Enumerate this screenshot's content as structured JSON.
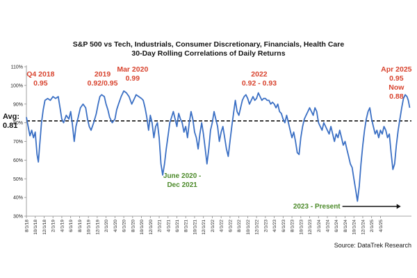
{
  "chart_data": {
    "type": "line",
    "title": "S&P 500 vs Tech, Industrials, Consumer Discretionary, Financials, Health Care",
    "subtitle": "30-Day Rolling Correlations of Daily Returns",
    "source": "Source: DataTrek Research",
    "ylim": [
      30,
      110
    ],
    "y_ticks": [
      30,
      40,
      50,
      60,
      70,
      80,
      90,
      100,
      110
    ],
    "y_tick_labels": [
      "30%",
      "40%",
      "50%",
      "60%",
      "70%",
      "80%",
      "90%",
      "100%",
      "110%"
    ],
    "x_tick_labels": [
      "8/1/18",
      "10/1/18",
      "12/1/18",
      "2/1/19",
      "4/1/19",
      "6/1/19",
      "8/1/19",
      "10/1/19",
      "12/1/19",
      "2/1/20",
      "4/1/20",
      "6/1/20",
      "8/1/20",
      "10/1/20",
      "12/1/20",
      "2/1/21",
      "4/1/21",
      "6/1/21",
      "8/1/21",
      "10/1/21",
      "12/1/21",
      "2/1/22",
      "4/1/22",
      "6/1/22",
      "8/1/22",
      "10/1/22",
      "12/1/22",
      "2/1/23",
      "4/1/23",
      "6/1/23",
      "8/1/23",
      "10/1/23",
      "12/1/23",
      "2/1/24",
      "4/1/24",
      "6/1/24",
      "8/1/24",
      "10/1/24",
      "12/1/24",
      "2/1/25",
      "4/1/25"
    ],
    "average": 0.81,
    "average_label": "Avg:",
    "average_value_label": "0.81",
    "series": [
      {
        "name": "30-day rolling correlation",
        "color": "#3a6fc4",
        "points": [
          [
            0,
            83
          ],
          [
            0.2,
            78
          ],
          [
            0.4,
            73
          ],
          [
            0.6,
            76
          ],
          [
            0.8,
            72
          ],
          [
            1,
            75
          ],
          [
            1.2,
            63
          ],
          [
            1.35,
            59
          ],
          [
            1.5,
            68
          ],
          [
            1.7,
            80
          ],
          [
            1.9,
            87
          ],
          [
            2.1,
            92
          ],
          [
            2.4,
            93
          ],
          [
            2.7,
            92
          ],
          [
            3,
            94
          ],
          [
            3.3,
            93
          ],
          [
            3.6,
            94
          ],
          [
            3.8,
            88
          ],
          [
            4,
            82
          ],
          [
            4.2,
            80
          ],
          [
            4.5,
            84
          ],
          [
            4.8,
            82
          ],
          [
            5,
            86
          ],
          [
            5.2,
            79
          ],
          [
            5.4,
            70
          ],
          [
            5.6,
            78
          ],
          [
            5.8,
            82
          ],
          [
            6.1,
            88
          ],
          [
            6.4,
            90
          ],
          [
            6.7,
            88
          ],
          [
            6.9,
            82
          ],
          [
            7.1,
            78
          ],
          [
            7.3,
            76
          ],
          [
            7.6,
            80
          ],
          [
            7.9,
            85
          ],
          [
            8.1,
            90
          ],
          [
            8.3,
            94
          ],
          [
            8.5,
            95
          ],
          [
            8.8,
            94
          ],
          [
            9,
            90
          ],
          [
            9.2,
            87
          ],
          [
            9.4,
            83
          ],
          [
            9.7,
            80
          ],
          [
            10,
            82
          ],
          [
            10.2,
            87
          ],
          [
            10.4,
            90
          ],
          [
            10.7,
            94
          ],
          [
            11,
            97
          ],
          [
            11.3,
            96
          ],
          [
            11.6,
            94
          ],
          [
            11.9,
            90
          ],
          [
            12.2,
            93
          ],
          [
            12.4,
            95
          ],
          [
            12.7,
            94
          ],
          [
            13,
            93
          ],
          [
            13.2,
            92
          ],
          [
            13.4,
            88
          ],
          [
            13.6,
            83
          ],
          [
            13.8,
            76
          ],
          [
            14,
            84
          ],
          [
            14.2,
            80
          ],
          [
            14.4,
            72
          ],
          [
            14.6,
            78
          ],
          [
            14.8,
            80
          ],
          [
            15,
            72
          ],
          [
            15.2,
            58
          ],
          [
            15.4,
            52
          ],
          [
            15.6,
            58
          ],
          [
            15.8,
            66
          ],
          [
            16,
            73
          ],
          [
            16.2,
            80
          ],
          [
            16.4,
            83
          ],
          [
            16.6,
            86
          ],
          [
            16.8,
            82
          ],
          [
            17,
            78
          ],
          [
            17.2,
            85
          ],
          [
            17.4,
            82
          ],
          [
            17.6,
            80
          ],
          [
            17.8,
            75
          ],
          [
            18,
            78
          ],
          [
            18.2,
            72
          ],
          [
            18.4,
            80
          ],
          [
            18.6,
            86
          ],
          [
            18.8,
            82
          ],
          [
            19,
            75
          ],
          [
            19.2,
            72
          ],
          [
            19.4,
            66
          ],
          [
            19.6,
            74
          ],
          [
            19.8,
            80
          ],
          [
            20,
            74
          ],
          [
            20.2,
            66
          ],
          [
            20.4,
            58
          ],
          [
            20.6,
            66
          ],
          [
            20.8,
            76
          ],
          [
            21,
            80
          ],
          [
            21.2,
            86
          ],
          [
            21.4,
            82
          ],
          [
            21.6,
            78
          ],
          [
            21.8,
            70
          ],
          [
            22,
            75
          ],
          [
            22.2,
            78
          ],
          [
            22.4,
            72
          ],
          [
            22.6,
            66
          ],
          [
            22.8,
            62
          ],
          [
            23,
            70
          ],
          [
            23.2,
            78
          ],
          [
            23.4,
            85
          ],
          [
            23.6,
            92
          ],
          [
            23.8,
            86
          ],
          [
            24,
            84
          ],
          [
            24.2,
            88
          ],
          [
            24.4,
            92
          ],
          [
            24.6,
            94
          ],
          [
            24.8,
            95
          ],
          [
            25,
            93
          ],
          [
            25.2,
            90
          ],
          [
            25.4,
            92
          ],
          [
            25.6,
            94
          ],
          [
            25.8,
            92
          ],
          [
            26,
            93
          ],
          [
            26.2,
            96
          ],
          [
            26.4,
            94
          ],
          [
            26.6,
            92
          ],
          [
            26.8,
            93
          ],
          [
            27,
            93
          ],
          [
            27.2,
            92
          ],
          [
            27.4,
            92
          ],
          [
            27.6,
            90
          ],
          [
            27.8,
            91
          ],
          [
            28,
            90
          ],
          [
            28.2,
            88
          ],
          [
            28.4,
            90
          ],
          [
            28.6,
            86
          ],
          [
            28.8,
            85
          ],
          [
            29,
            82
          ],
          [
            29.2,
            80
          ],
          [
            29.4,
            84
          ],
          [
            29.6,
            80
          ],
          [
            29.8,
            76
          ],
          [
            30,
            72
          ],
          [
            30.2,
            75
          ],
          [
            30.4,
            70
          ],
          [
            30.6,
            64
          ],
          [
            30.8,
            63
          ],
          [
            31,
            72
          ],
          [
            31.2,
            78
          ],
          [
            31.4,
            82
          ],
          [
            31.6,
            84
          ],
          [
            31.8,
            86
          ],
          [
            32,
            88
          ],
          [
            32.2,
            86
          ],
          [
            32.4,
            84
          ],
          [
            32.6,
            88
          ],
          [
            32.8,
            86
          ],
          [
            33,
            80
          ],
          [
            33.2,
            78
          ],
          [
            33.4,
            76
          ],
          [
            33.6,
            80
          ],
          [
            33.8,
            78
          ],
          [
            34,
            76
          ],
          [
            34.2,
            74
          ],
          [
            34.4,
            78
          ],
          [
            34.6,
            74
          ],
          [
            34.8,
            70
          ],
          [
            35,
            74
          ],
          [
            35.2,
            72
          ],
          [
            35.4,
            76
          ],
          [
            35.6,
            72
          ],
          [
            35.8,
            68
          ],
          [
            36,
            70
          ],
          [
            36.2,
            66
          ],
          [
            36.4,
            62
          ],
          [
            36.6,
            58
          ],
          [
            36.8,
            56
          ],
          [
            37,
            50
          ],
          [
            37.2,
            44
          ],
          [
            37.4,
            38
          ],
          [
            37.6,
            46
          ],
          [
            37.8,
            58
          ],
          [
            38,
            68
          ],
          [
            38.2,
            76
          ],
          [
            38.4,
            82
          ],
          [
            38.6,
            86
          ],
          [
            38.8,
            88
          ],
          [
            39,
            82
          ],
          [
            39.2,
            78
          ],
          [
            39.4,
            74
          ],
          [
            39.6,
            76
          ],
          [
            39.8,
            72
          ],
          [
            40,
            76
          ],
          [
            40.2,
            74
          ],
          [
            40.4,
            78
          ],
          [
            40.6,
            76
          ],
          [
            40.8,
            72
          ],
          [
            41,
            74
          ],
          [
            41.2,
            64
          ],
          [
            41.4,
            55
          ],
          [
            41.6,
            58
          ],
          [
            41.8,
            68
          ],
          [
            42,
            76
          ],
          [
            42.2,
            82
          ],
          [
            42.4,
            88
          ],
          [
            42.6,
            93
          ],
          [
            42.8,
            95
          ],
          [
            43,
            94
          ],
          [
            43.15,
            92
          ],
          [
            43.3,
            88
          ]
        ]
      }
    ],
    "annotations": [
      {
        "lines": [
          "Q4 2018",
          "0.95"
        ],
        "color": "#d8432e"
      },
      {
        "lines": [
          "2019",
          "0.92/0.95"
        ],
        "color": "#d8432e"
      },
      {
        "lines": [
          "Mar 2020",
          "0.99"
        ],
        "color": "#d8432e"
      },
      {
        "lines": [
          "2022",
          "0.92 - 0.93"
        ],
        "color": "#d8432e"
      },
      {
        "lines": [
          "Apr 2025",
          "0.95",
          "Now",
          "0.88"
        ],
        "color": "#d8432e"
      },
      {
        "lines": [
          "June 2020 -",
          "Dec 2021"
        ],
        "color": "#4c8a2a"
      },
      {
        "lines": [
          "2023 - Present"
        ],
        "color": "#4c8a2a"
      }
    ],
    "colors": {
      "line": "#3a6fc4",
      "accent_red": "#d8432e",
      "accent_green": "#4c8a2a",
      "axis": "#888888"
    }
  }
}
